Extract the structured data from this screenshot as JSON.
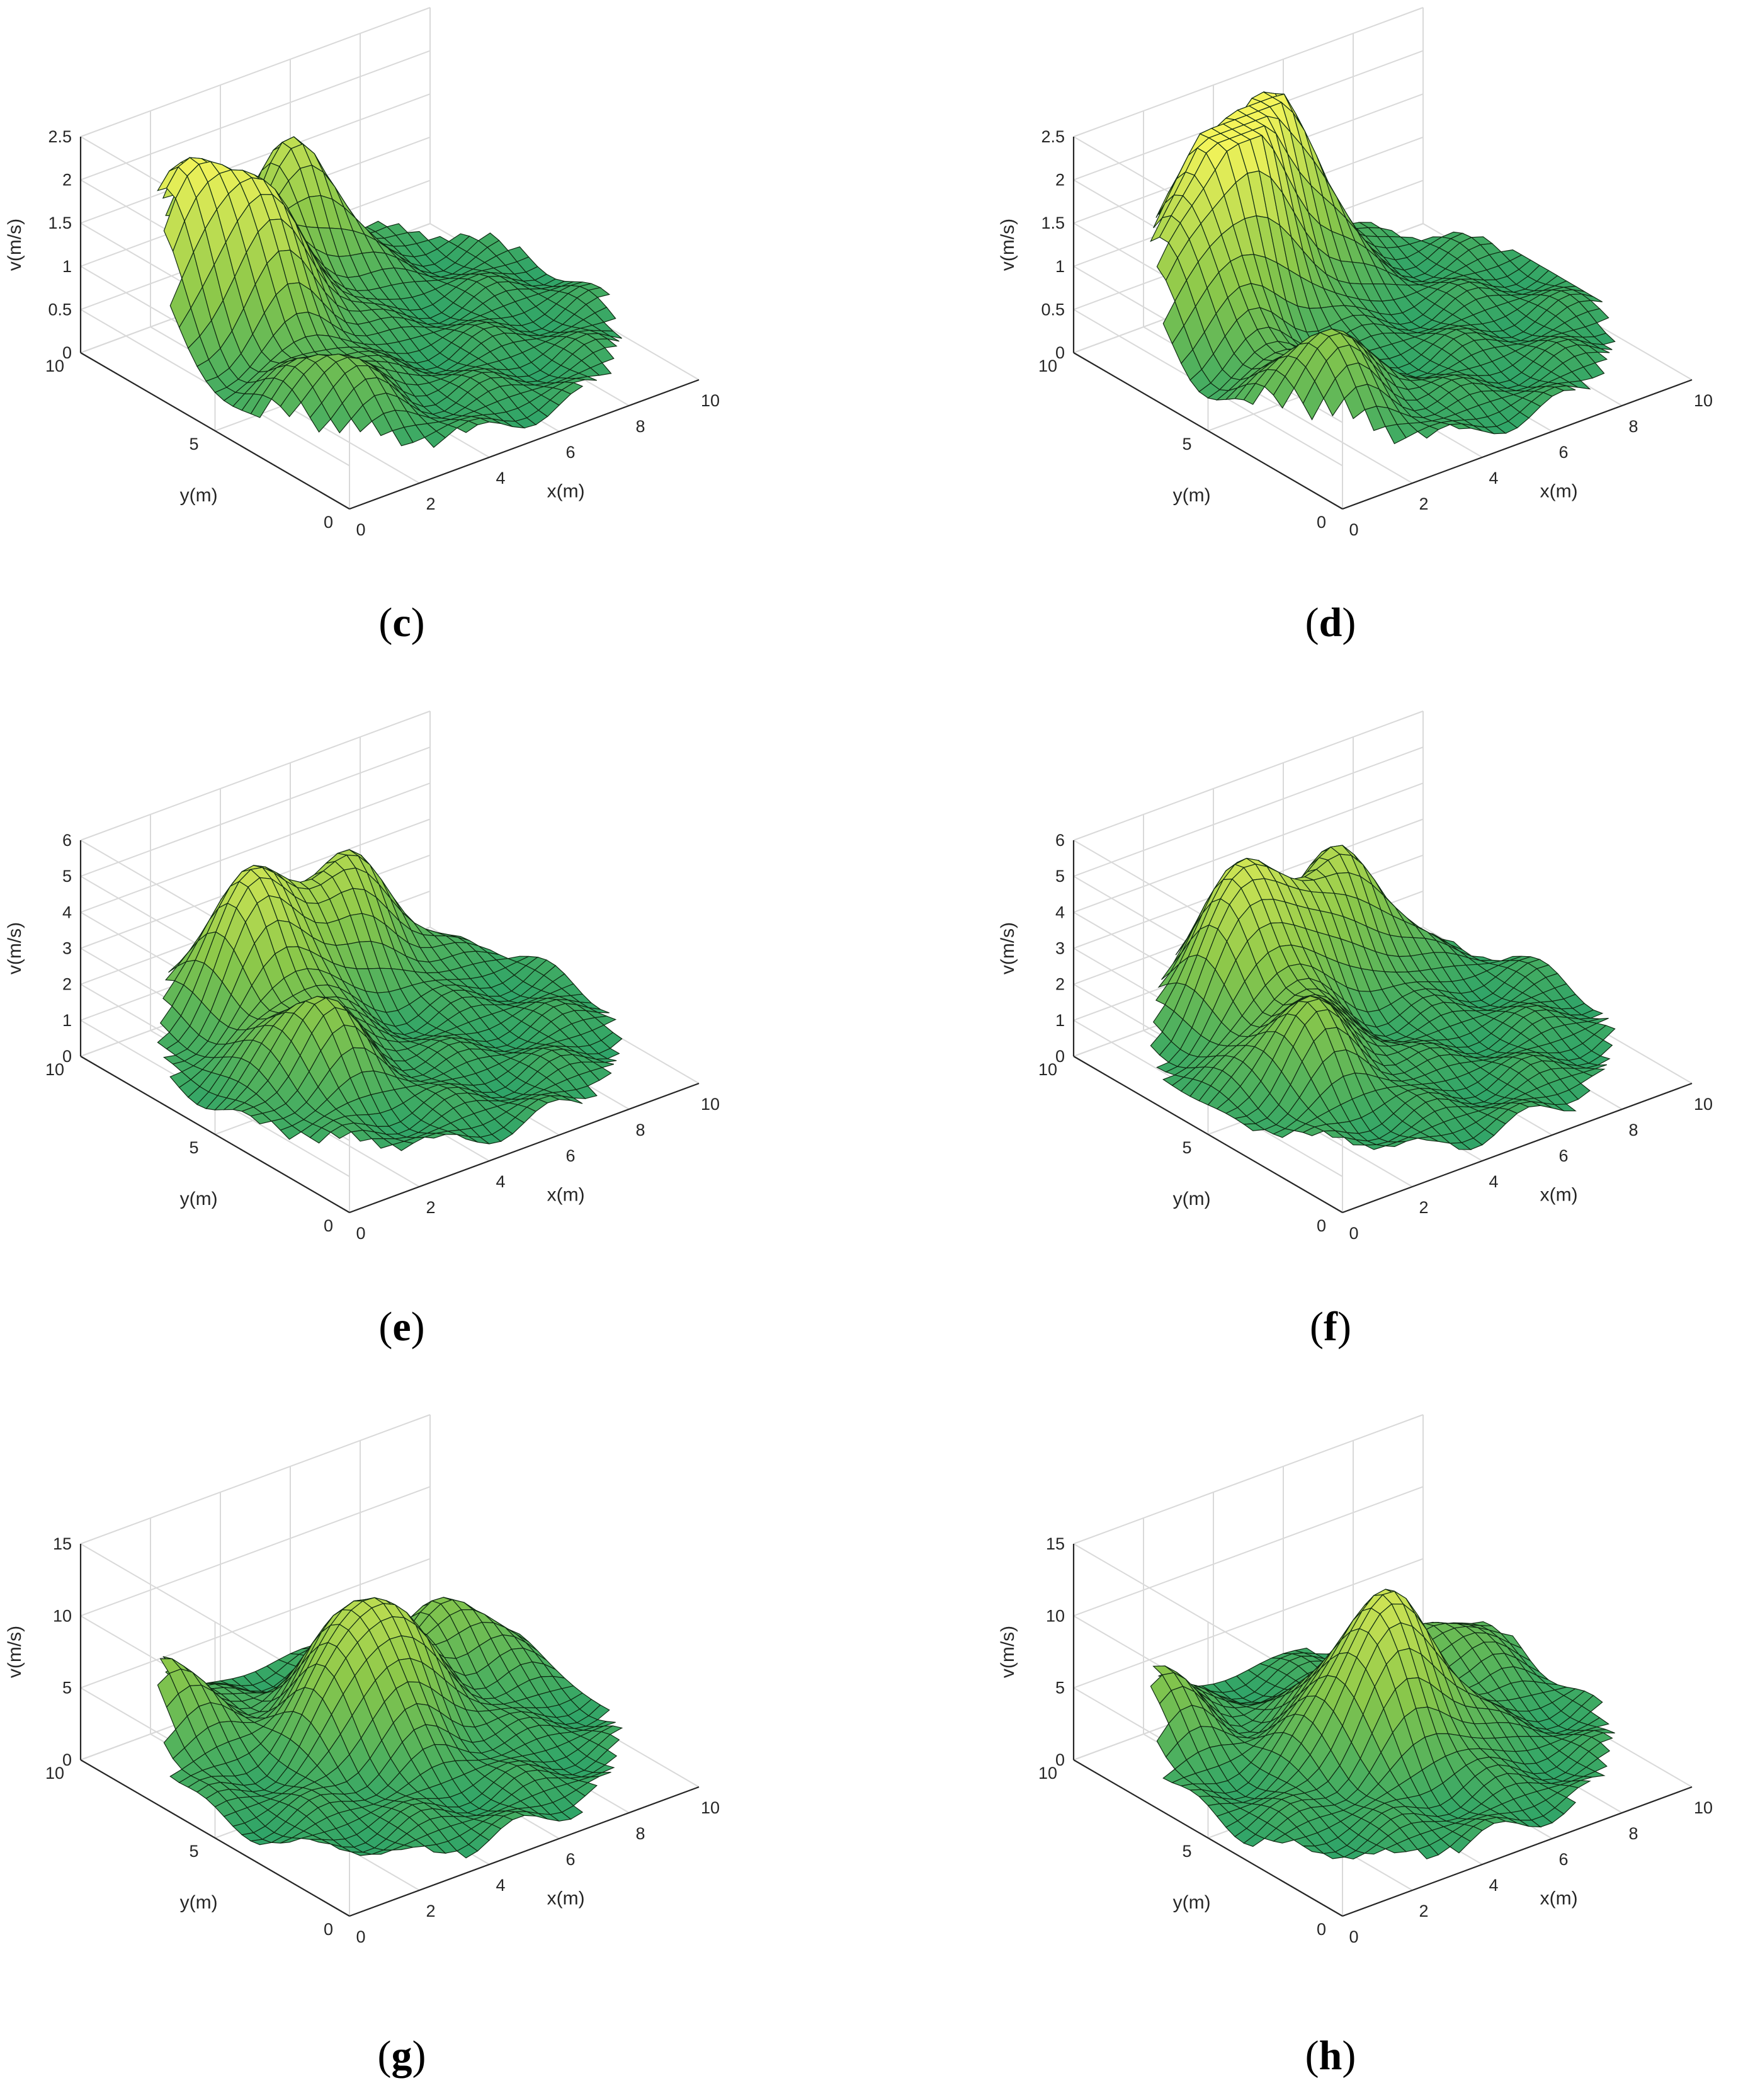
{
  "figure": {
    "type": "3d-surface-grid",
    "description_free": true
  },
  "colors": {
    "surface_low": "#1f9e6e",
    "surface_mid": "#8cc84a",
    "surface_high": "#f4f45a",
    "mesh_line": "#0f2a12",
    "grid": "#d9d9d9",
    "axis": "#262626"
  },
  "chart_data": [
    {
      "type": "surface",
      "panel": "c",
      "xlabel": "x(m)",
      "ylabel": "y(m)",
      "zlabel": "v(m/s)",
      "xlim": [
        0,
        10
      ],
      "ylim": [
        0,
        10
      ],
      "zlim": [
        0,
        2.5
      ],
      "xticks": [
        "0",
        "2",
        "4",
        "6",
        "8",
        "10"
      ],
      "yticks": [
        "0",
        "5",
        "10"
      ],
      "zticks": [
        "0",
        "0.5",
        "1",
        "1.5",
        "2",
        "2.5"
      ],
      "grid": true,
      "peaks": [
        {
          "x": 1.2,
          "y": 7.8,
          "v": 2.2
        },
        {
          "x": 2.8,
          "y": 6.5,
          "v": 1.6
        },
        {
          "x": 5.2,
          "y": 8.8,
          "v": 1.8
        },
        {
          "x": 1.8,
          "y": 3.0,
          "v": 1.0
        }
      ]
    },
    {
      "type": "surface",
      "panel": "d",
      "xlabel": "x(m)",
      "ylabel": "y(m)",
      "zlabel": "v(m/s)",
      "xlim": [
        0,
        10
      ],
      "ylim": [
        0,
        10
      ],
      "zlim": [
        0,
        2.5
      ],
      "xticks": [
        "0",
        "2",
        "4",
        "6",
        "8",
        "10"
      ],
      "yticks": [
        "0",
        "5",
        "10"
      ],
      "zticks": [
        "0",
        "0.5",
        "1",
        "1.5",
        "2",
        "2.5"
      ],
      "grid": true,
      "peaks": [
        {
          "x": 1.5,
          "y": 7.5,
          "v": 1.8
        },
        {
          "x": 3.2,
          "y": 8.0,
          "v": 2.0
        },
        {
          "x": 5.0,
          "y": 8.8,
          "v": 2.1
        },
        {
          "x": 1.8,
          "y": 3.0,
          "v": 1.3
        }
      ]
    },
    {
      "type": "surface",
      "panel": "e",
      "xlabel": "x(m)",
      "ylabel": "y(m)",
      "zlabel": "v(m/s)",
      "xlim": [
        0,
        10
      ],
      "ylim": [
        0,
        10
      ],
      "zlim": [
        0,
        6
      ],
      "xticks": [
        "0",
        "2",
        "4",
        "6",
        "8",
        "10"
      ],
      "yticks": [
        "0",
        "5",
        "10"
      ],
      "zticks": [
        "0",
        "1",
        "2",
        "3",
        "4",
        "5",
        "6"
      ],
      "grid": true,
      "peaks": [
        {
          "x": 3.5,
          "y": 8.0,
          "v": 4.8
        },
        {
          "x": 6.5,
          "y": 8.5,
          "v": 3.8
        },
        {
          "x": 2.5,
          "y": 4.5,
          "v": 3.0
        }
      ]
    },
    {
      "type": "surface",
      "panel": "f",
      "xlabel": "x(m)",
      "ylabel": "y(m)",
      "zlabel": "v(m/s)",
      "xlim": [
        0,
        10
      ],
      "ylim": [
        0,
        10
      ],
      "zlim": [
        0,
        6
      ],
      "xticks": [
        "0",
        "2",
        "4",
        "6",
        "8",
        "10"
      ],
      "yticks": [
        "0",
        "5",
        "10"
      ],
      "zticks": [
        "0",
        "1",
        "2",
        "3",
        "4",
        "5",
        "6"
      ],
      "grid": true,
      "peaks": [
        {
          "x": 3.5,
          "y": 8.0,
          "v": 5.0
        },
        {
          "x": 6.5,
          "y": 8.5,
          "v": 3.8
        },
        {
          "x": 2.5,
          "y": 4.5,
          "v": 3.0
        }
      ]
    },
    {
      "type": "surface",
      "panel": "g",
      "xlabel": "x(m)",
      "ylabel": "y(m)",
      "zlabel": "v(m/s)",
      "xlim": [
        0,
        10
      ],
      "ylim": [
        0,
        10
      ],
      "zlim": [
        0,
        15
      ],
      "xticks": [
        "0",
        "2",
        "4",
        "6",
        "8",
        "10"
      ],
      "yticks": [
        "0",
        "5",
        "10"
      ],
      "zticks": [
        "0",
        "5",
        "10",
        "15"
      ],
      "grid": true,
      "peaks": [
        {
          "x": 5.0,
          "y": 5.8,
          "v": 11.5
        },
        {
          "x": 1.0,
          "y": 8.5,
          "v": 8.0
        },
        {
          "x": 8.5,
          "y": 7.0,
          "v": 6.5
        }
      ]
    },
    {
      "type": "surface",
      "panel": "h",
      "xlabel": "x(m)",
      "ylabel": "y(m)",
      "zlabel": "v(m/s)",
      "xlim": [
        0,
        10
      ],
      "ylim": [
        0,
        10
      ],
      "zlim": [
        0,
        15
      ],
      "xticks": [
        "0",
        "2",
        "4",
        "6",
        "8",
        "10"
      ],
      "yticks": [
        "0",
        "5",
        "10"
      ],
      "zticks": [
        "0",
        "5",
        "10",
        "15"
      ],
      "grid": true,
      "peaks": [
        {
          "x": 5.0,
          "y": 5.0,
          "v": 12.5
        },
        {
          "x": 1.0,
          "y": 8.5,
          "v": 7.5
        },
        {
          "x": 8.5,
          "y": 7.0,
          "v": 5.5
        }
      ]
    }
  ],
  "panels": [
    {
      "letter": "c"
    },
    {
      "letter": "d"
    },
    {
      "letter": "e"
    },
    {
      "letter": "f"
    },
    {
      "letter": "g"
    },
    {
      "letter": "h"
    }
  ]
}
